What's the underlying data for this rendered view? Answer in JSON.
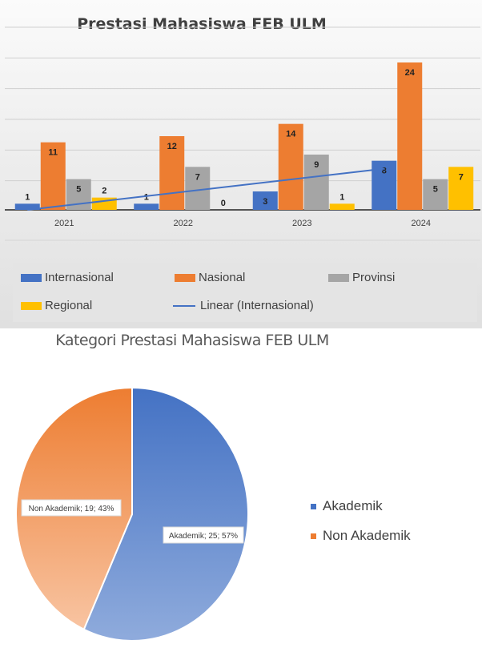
{
  "chart_data": [
    {
      "type": "bar",
      "title": "Prestasi Mahasiswa FEB ULM",
      "categories": [
        "2021",
        "2022",
        "2023",
        "2024"
      ],
      "series": [
        {
          "name": "Internasional",
          "values": [
            1,
            1,
            3,
            8
          ],
          "color": "#4472c4"
        },
        {
          "name": "Nasional",
          "values": [
            11,
            12,
            14,
            24
          ],
          "color": "#ed7d31"
        },
        {
          "name": "Provinsi",
          "values": [
            5,
            7,
            9,
            5
          ],
          "color": "#a5a5a5"
        },
        {
          "name": "Regional",
          "values": [
            2,
            0,
            1,
            7
          ],
          "color": "#ffc000"
        }
      ],
      "trendline": {
        "name": "Linear (Internasional)",
        "series": "Internasional",
        "color": "#4472c4"
      },
      "ylim": [
        0,
        24
      ],
      "grid": true,
      "legend": "bottom"
    },
    {
      "type": "pie",
      "title": "Kategori Prestasi Mahasiswa FEB ULM",
      "slices": [
        {
          "name": "Akademik",
          "value": 25,
          "percent": 57,
          "label": "Akademik; 25; 57%",
          "color": "#4472c4"
        },
        {
          "name": "Non Akademik",
          "value": 19,
          "percent": 43,
          "label": "Non Akademik; 19; 43%",
          "color": "#ed7d31"
        }
      ],
      "legend": "right"
    }
  ]
}
